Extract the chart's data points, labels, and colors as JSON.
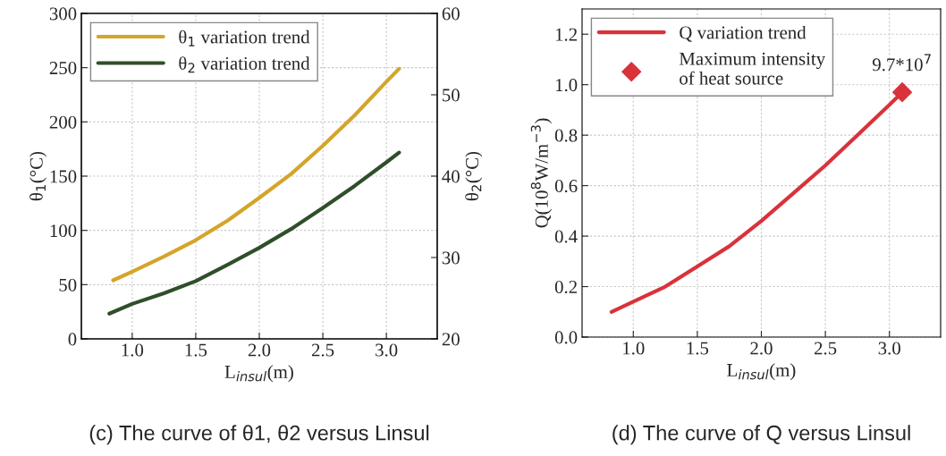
{
  "chart_data": [
    {
      "type": "line",
      "xlabel": "L$_{insul}$(m)",
      "ylabel": "θ$_{1}$(°C)",
      "y2label": "θ$_{2}$(°C)",
      "xlim": [
        0.6,
        3.4
      ],
      "xticks": [
        {
          "value": 1,
          "label": "1.0"
        },
        {
          "value": 1.5,
          "label": "1.5"
        },
        {
          "value": 2,
          "label": "2.0"
        },
        {
          "value": 2.5,
          "label": "2.5"
        },
        {
          "value": 3,
          "label": "3.0"
        }
      ],
      "ylim": [
        0,
        300
      ],
      "yticks": [
        0,
        50,
        100,
        150,
        200,
        250,
        300
      ],
      "y2lim": [
        20,
        60
      ],
      "y2ticks": [
        20,
        30,
        40,
        50,
        60
      ],
      "grid": true,
      "legend": "top left",
      "annotations": [
        "(c) The curve of θ1, θ2 versus Linsul"
      ],
      "series": [
        {
          "name": "θ$_{1}$ variation trend",
          "color": "#d4a52a",
          "x": [
            0.85,
            1.0,
            1.25,
            1.5,
            1.75,
            2.0,
            2.25,
            2.5,
            2.75,
            3.0,
            3.1
          ],
          "values": [
            54,
            62,
            76,
            91,
            109,
            130,
            152,
            178,
            206,
            237,
            249
          ]
        },
        {
          "name": "θ$_{2}$ variation trend",
          "color": "#2f4f2a",
          "axis": "y2",
          "x": [
            0.82,
            1.0,
            1.25,
            1.5,
            1.75,
            2.0,
            2.25,
            2.5,
            2.75,
            3.0,
            3.1
          ],
          "values": [
            23.1,
            24.3,
            25.6,
            27.1,
            29.1,
            31.2,
            33.5,
            36.1,
            38.8,
            41.7,
            42.9
          ]
        }
      ]
    },
    {
      "type": "line",
      "xlabel": "L$_{insul}$(m)",
      "ylabel": "Q(10$^{8}$W/m$^{−3}$)",
      "xlim": [
        0.6,
        3.4
      ],
      "xticks": [
        {
          "value": 1,
          "label": "1.0"
        },
        {
          "value": 1.5,
          "label": "1.5"
        },
        {
          "value": 2,
          "label": "2.0"
        },
        {
          "value": 2.5,
          "label": "2.5"
        },
        {
          "value": 3,
          "label": "3.0"
        }
      ],
      "ylim": [
        0,
        1.3
      ],
      "yticks": [
        {
          "value": 0,
          "label": "0.0"
        },
        0.2,
        0.4,
        0.6,
        0.8,
        {
          "value": 1,
          "label": "1.0"
        },
        1.2
      ],
      "grid": true,
      "legend": "top left",
      "annotations": [
        {
          "text": "9.7*10$^{7}$",
          "x": 3.1,
          "y": 0.97
        },
        "(d) The curve of Q versus Linsul"
      ],
      "series": [
        {
          "name": "Q variation trend",
          "color": "#d9323a",
          "x": [
            0.83,
            1.0,
            1.25,
            1.5,
            1.75,
            2.0,
            2.25,
            2.5,
            2.75,
            3.0,
            3.1
          ],
          "values": [
            0.1,
            0.14,
            0.2,
            0.28,
            0.36,
            0.46,
            0.57,
            0.68,
            0.8,
            0.92,
            0.97
          ]
        },
        {
          "name": "Maximum intensity\nof heat source",
          "type": "scatter",
          "marker": "diamond",
          "color": "#d9323a",
          "x": [
            3.1
          ],
          "values": [
            0.97
          ]
        }
      ]
    }
  ]
}
